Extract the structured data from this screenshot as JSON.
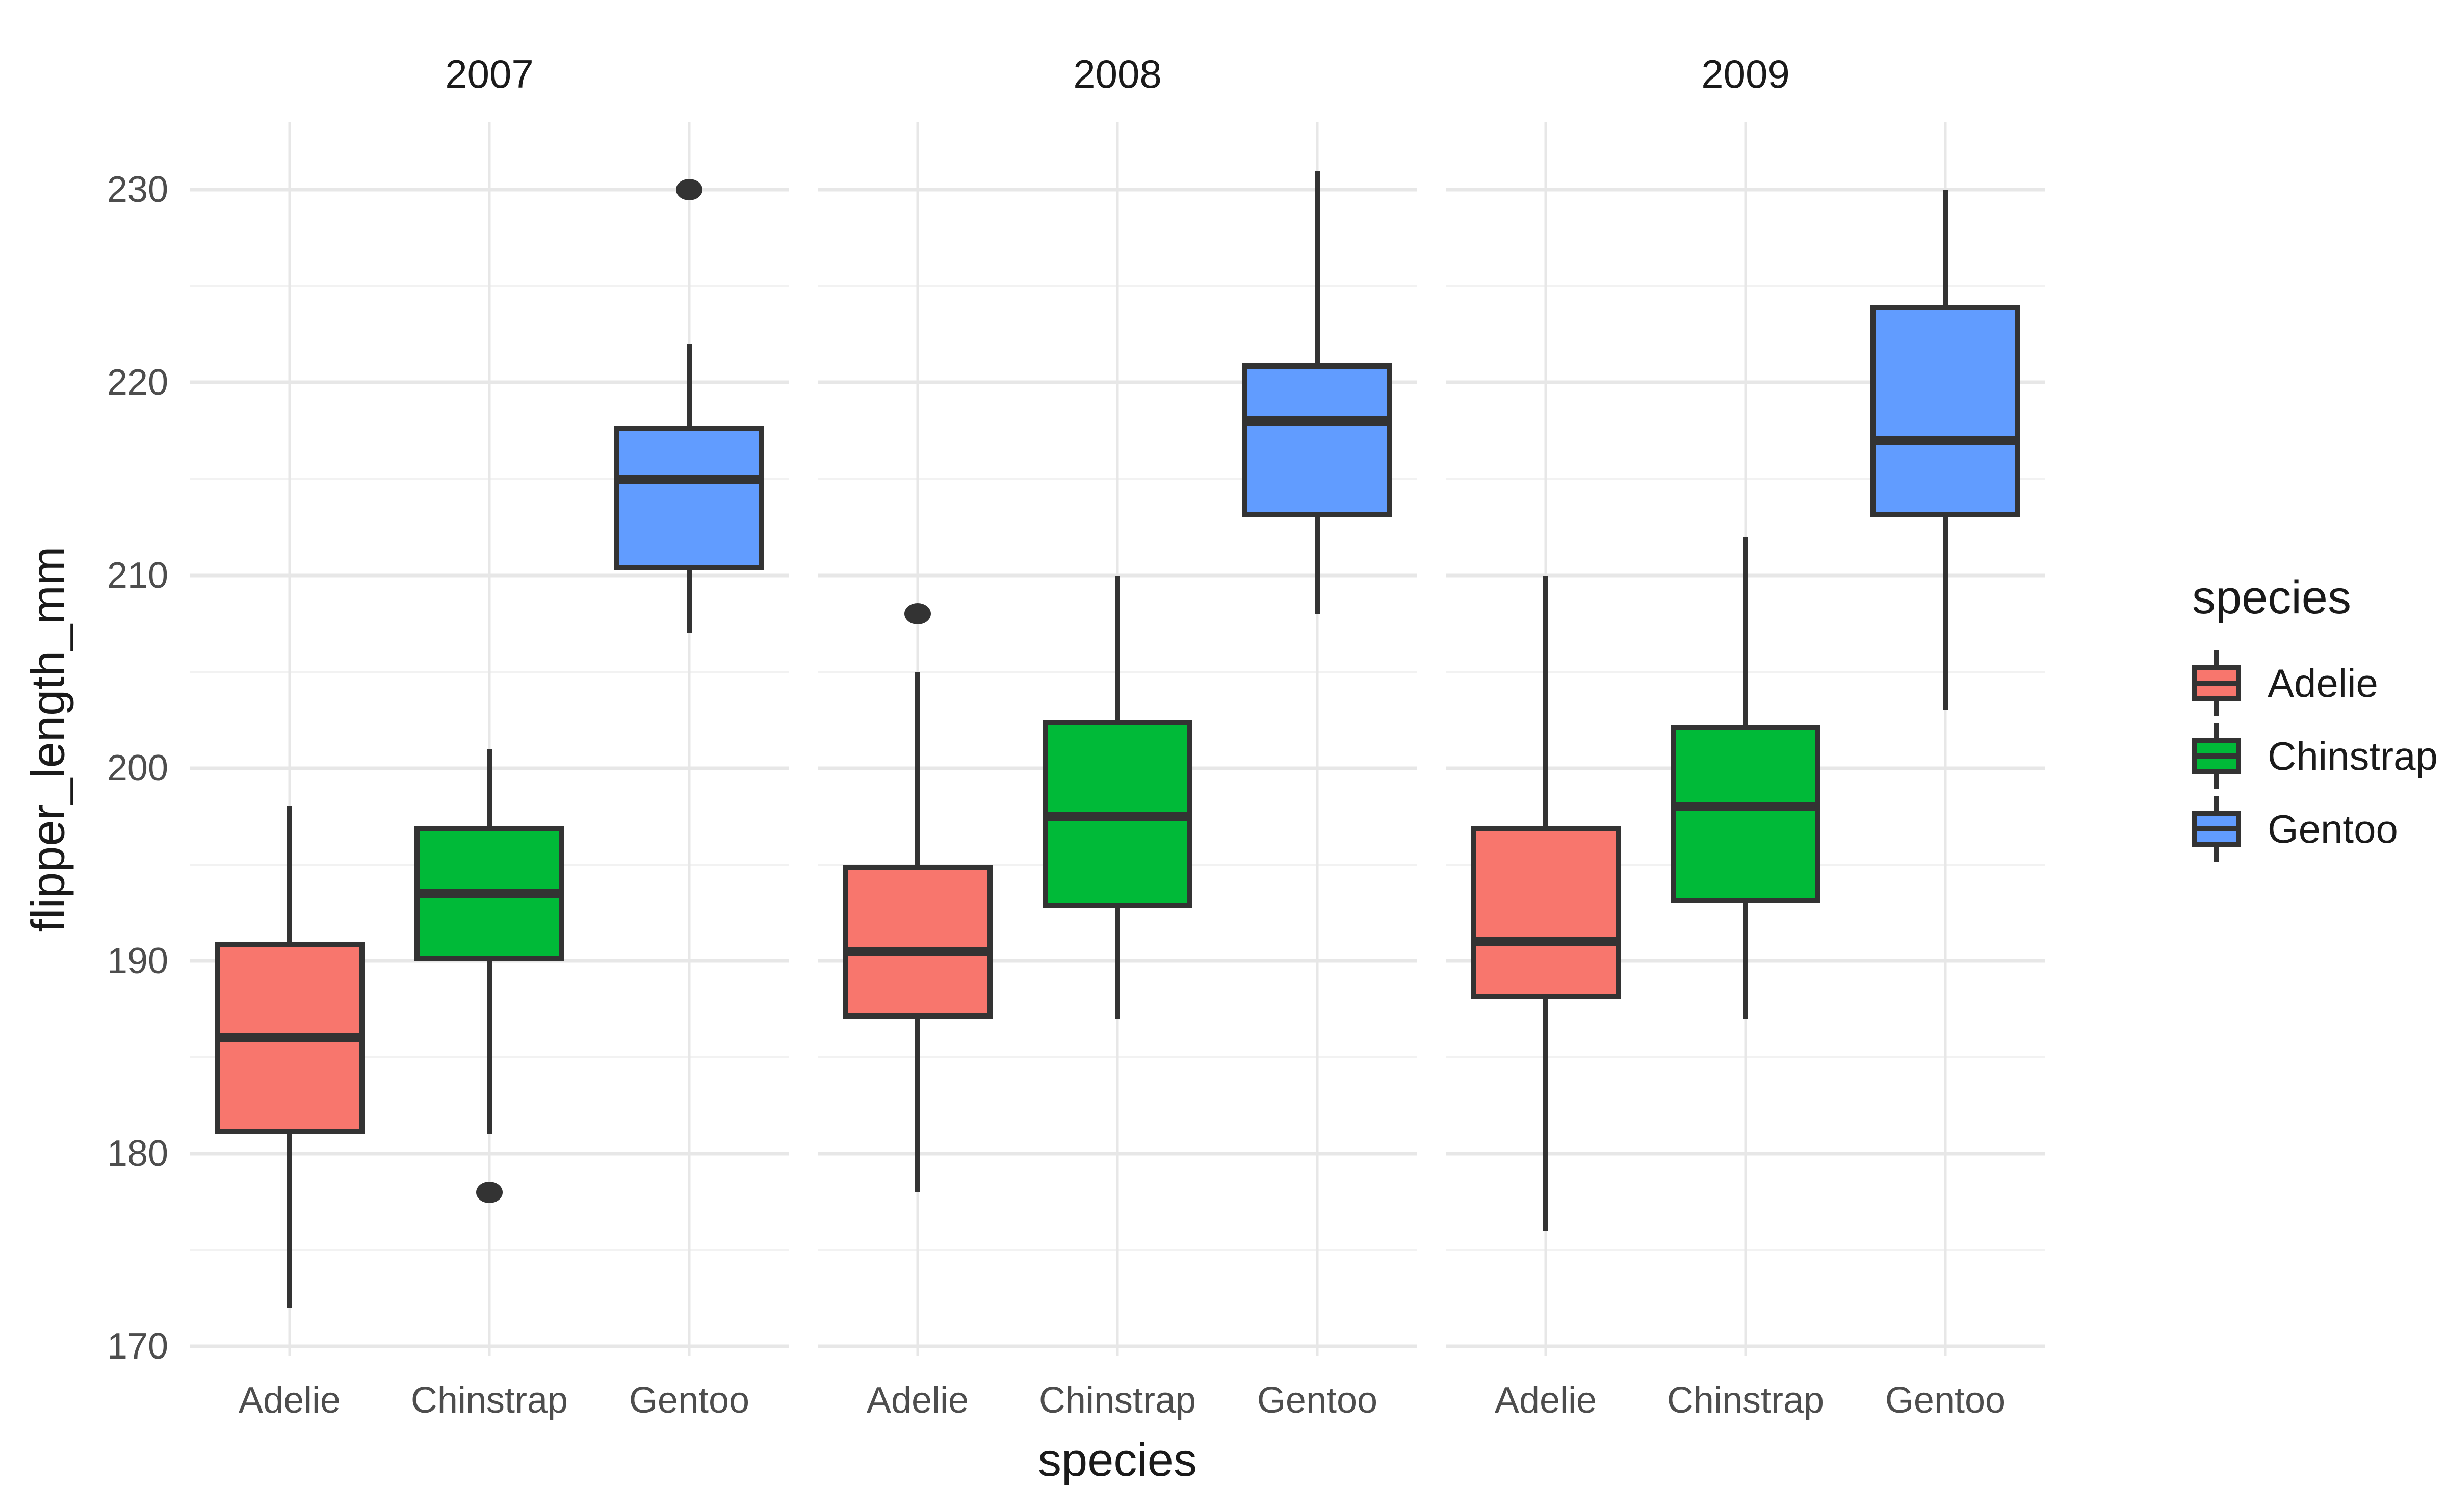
{
  "plot": {
    "y_axis_title": "flipper_length_mm",
    "x_axis_title": "species"
  },
  "colors": {
    "adelie": "#F8766D",
    "chinstrap": "#00BA38",
    "gentoo": "#619CFF",
    "box_border": "#333333",
    "outlier": "#333333",
    "grid_major": "#E7E7E7",
    "grid_minor": "#F2F2F2",
    "tick_text": "#4D4D4D",
    "text": "#1A1A1A",
    "background": "#FFFFFF"
  },
  "legend": {
    "title": "species",
    "entries": [
      {
        "label": "Adelie",
        "color_key": "adelie"
      },
      {
        "label": "Chinstrap",
        "color_key": "chinstrap"
      },
      {
        "label": "Gentoo",
        "color_key": "gentoo"
      }
    ]
  },
  "chart_data": {
    "type": "boxplot",
    "facet_variable": "year",
    "x_variable": "species",
    "y_variable": "flipper_length_mm",
    "categories": [
      "Adelie",
      "Chinstrap",
      "Gentoo"
    ],
    "y_ticks_major": [
      230,
      220,
      210,
      200,
      190,
      180,
      170
    ],
    "y_ticks_minor": [
      225,
      215,
      205,
      195,
      185,
      175
    ],
    "ylim": [
      169.5,
      233.5
    ],
    "grid": "on",
    "legend_position": "right",
    "facets": [
      {
        "label": "2007",
        "boxes": [
          {
            "species": "Adelie",
            "color_key": "adelie",
            "whisker_low": 172,
            "q1": 181,
            "median": 186,
            "q3": 191,
            "whisker_high": 198,
            "outliers": []
          },
          {
            "species": "Chinstrap",
            "color_key": "chinstrap",
            "whisker_low": 181,
            "q1": 190,
            "median": 193.5,
            "q3": 197,
            "whisker_high": 201,
            "outliers": [
              178
            ]
          },
          {
            "species": "Gentoo",
            "color_key": "gentoo",
            "whisker_low": 207,
            "q1": 210.25,
            "median": 215,
            "q3": 217.75,
            "whisker_high": 222,
            "outliers": [
              230
            ]
          }
        ]
      },
      {
        "label": "2008",
        "boxes": [
          {
            "species": "Adelie",
            "color_key": "adelie",
            "whisker_low": 178,
            "q1": 187,
            "median": 190.5,
            "q3": 195,
            "whisker_high": 205,
            "outliers": [
              208
            ]
          },
          {
            "species": "Chinstrap",
            "color_key": "chinstrap",
            "whisker_low": 187,
            "q1": 192.75,
            "median": 197.5,
            "q3": 202.5,
            "whisker_high": 210,
            "outliers": []
          },
          {
            "species": "Gentoo",
            "color_key": "gentoo",
            "whisker_low": 208,
            "q1": 213,
            "median": 218,
            "q3": 221,
            "whisker_high": 231,
            "outliers": []
          }
        ]
      },
      {
        "label": "2009",
        "boxes": [
          {
            "species": "Adelie",
            "color_key": "adelie",
            "whisker_low": 176,
            "q1": 188,
            "median": 191,
            "q3": 197,
            "whisker_high": 210,
            "outliers": []
          },
          {
            "species": "Chinstrap",
            "color_key": "chinstrap",
            "whisker_low": 187,
            "q1": 193,
            "median": 198,
            "q3": 202.25,
            "whisker_high": 212,
            "outliers": []
          },
          {
            "species": "Gentoo",
            "color_key": "gentoo",
            "whisker_low": 203,
            "q1": 213,
            "median": 217,
            "q3": 224,
            "whisker_high": 230,
            "outliers": []
          }
        ]
      }
    ]
  }
}
